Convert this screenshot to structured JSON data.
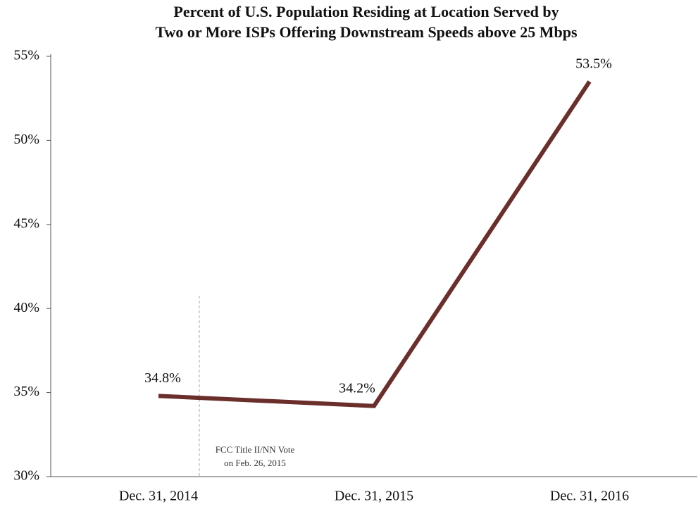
{
  "chart_data": {
    "type": "line",
    "title": [
      "Percent of U.S. Population Residing at Location Served by",
      "Two or More ISPs Offering Downstream Speeds above 25 Mbps"
    ],
    "categories": [
      "Dec. 31, 2014",
      "Dec. 31, 2015",
      "Dec. 31, 2016"
    ],
    "series": [
      {
        "name": null,
        "color": "#6b2f2b",
        "values": [
          34.8,
          34.2,
          53.5
        ]
      }
    ],
    "value_labels": [
      "34.8%",
      "34.2%",
      "53.5%"
    ],
    "ylim": [
      30,
      55
    ],
    "yticks": [
      {
        "value": 30,
        "label": "30%"
      },
      {
        "value": 35,
        "label": "35%"
      },
      {
        "value": 40,
        "label": "40%"
      },
      {
        "value": 45,
        "label": "45%"
      },
      {
        "value": 50,
        "label": "50%"
      },
      {
        "value": 55,
        "label": "55%"
      }
    ],
    "grid": false,
    "annotation": [
      "FCC Title II/NN Vote",
      "on Feb. 26, 2015"
    ]
  }
}
